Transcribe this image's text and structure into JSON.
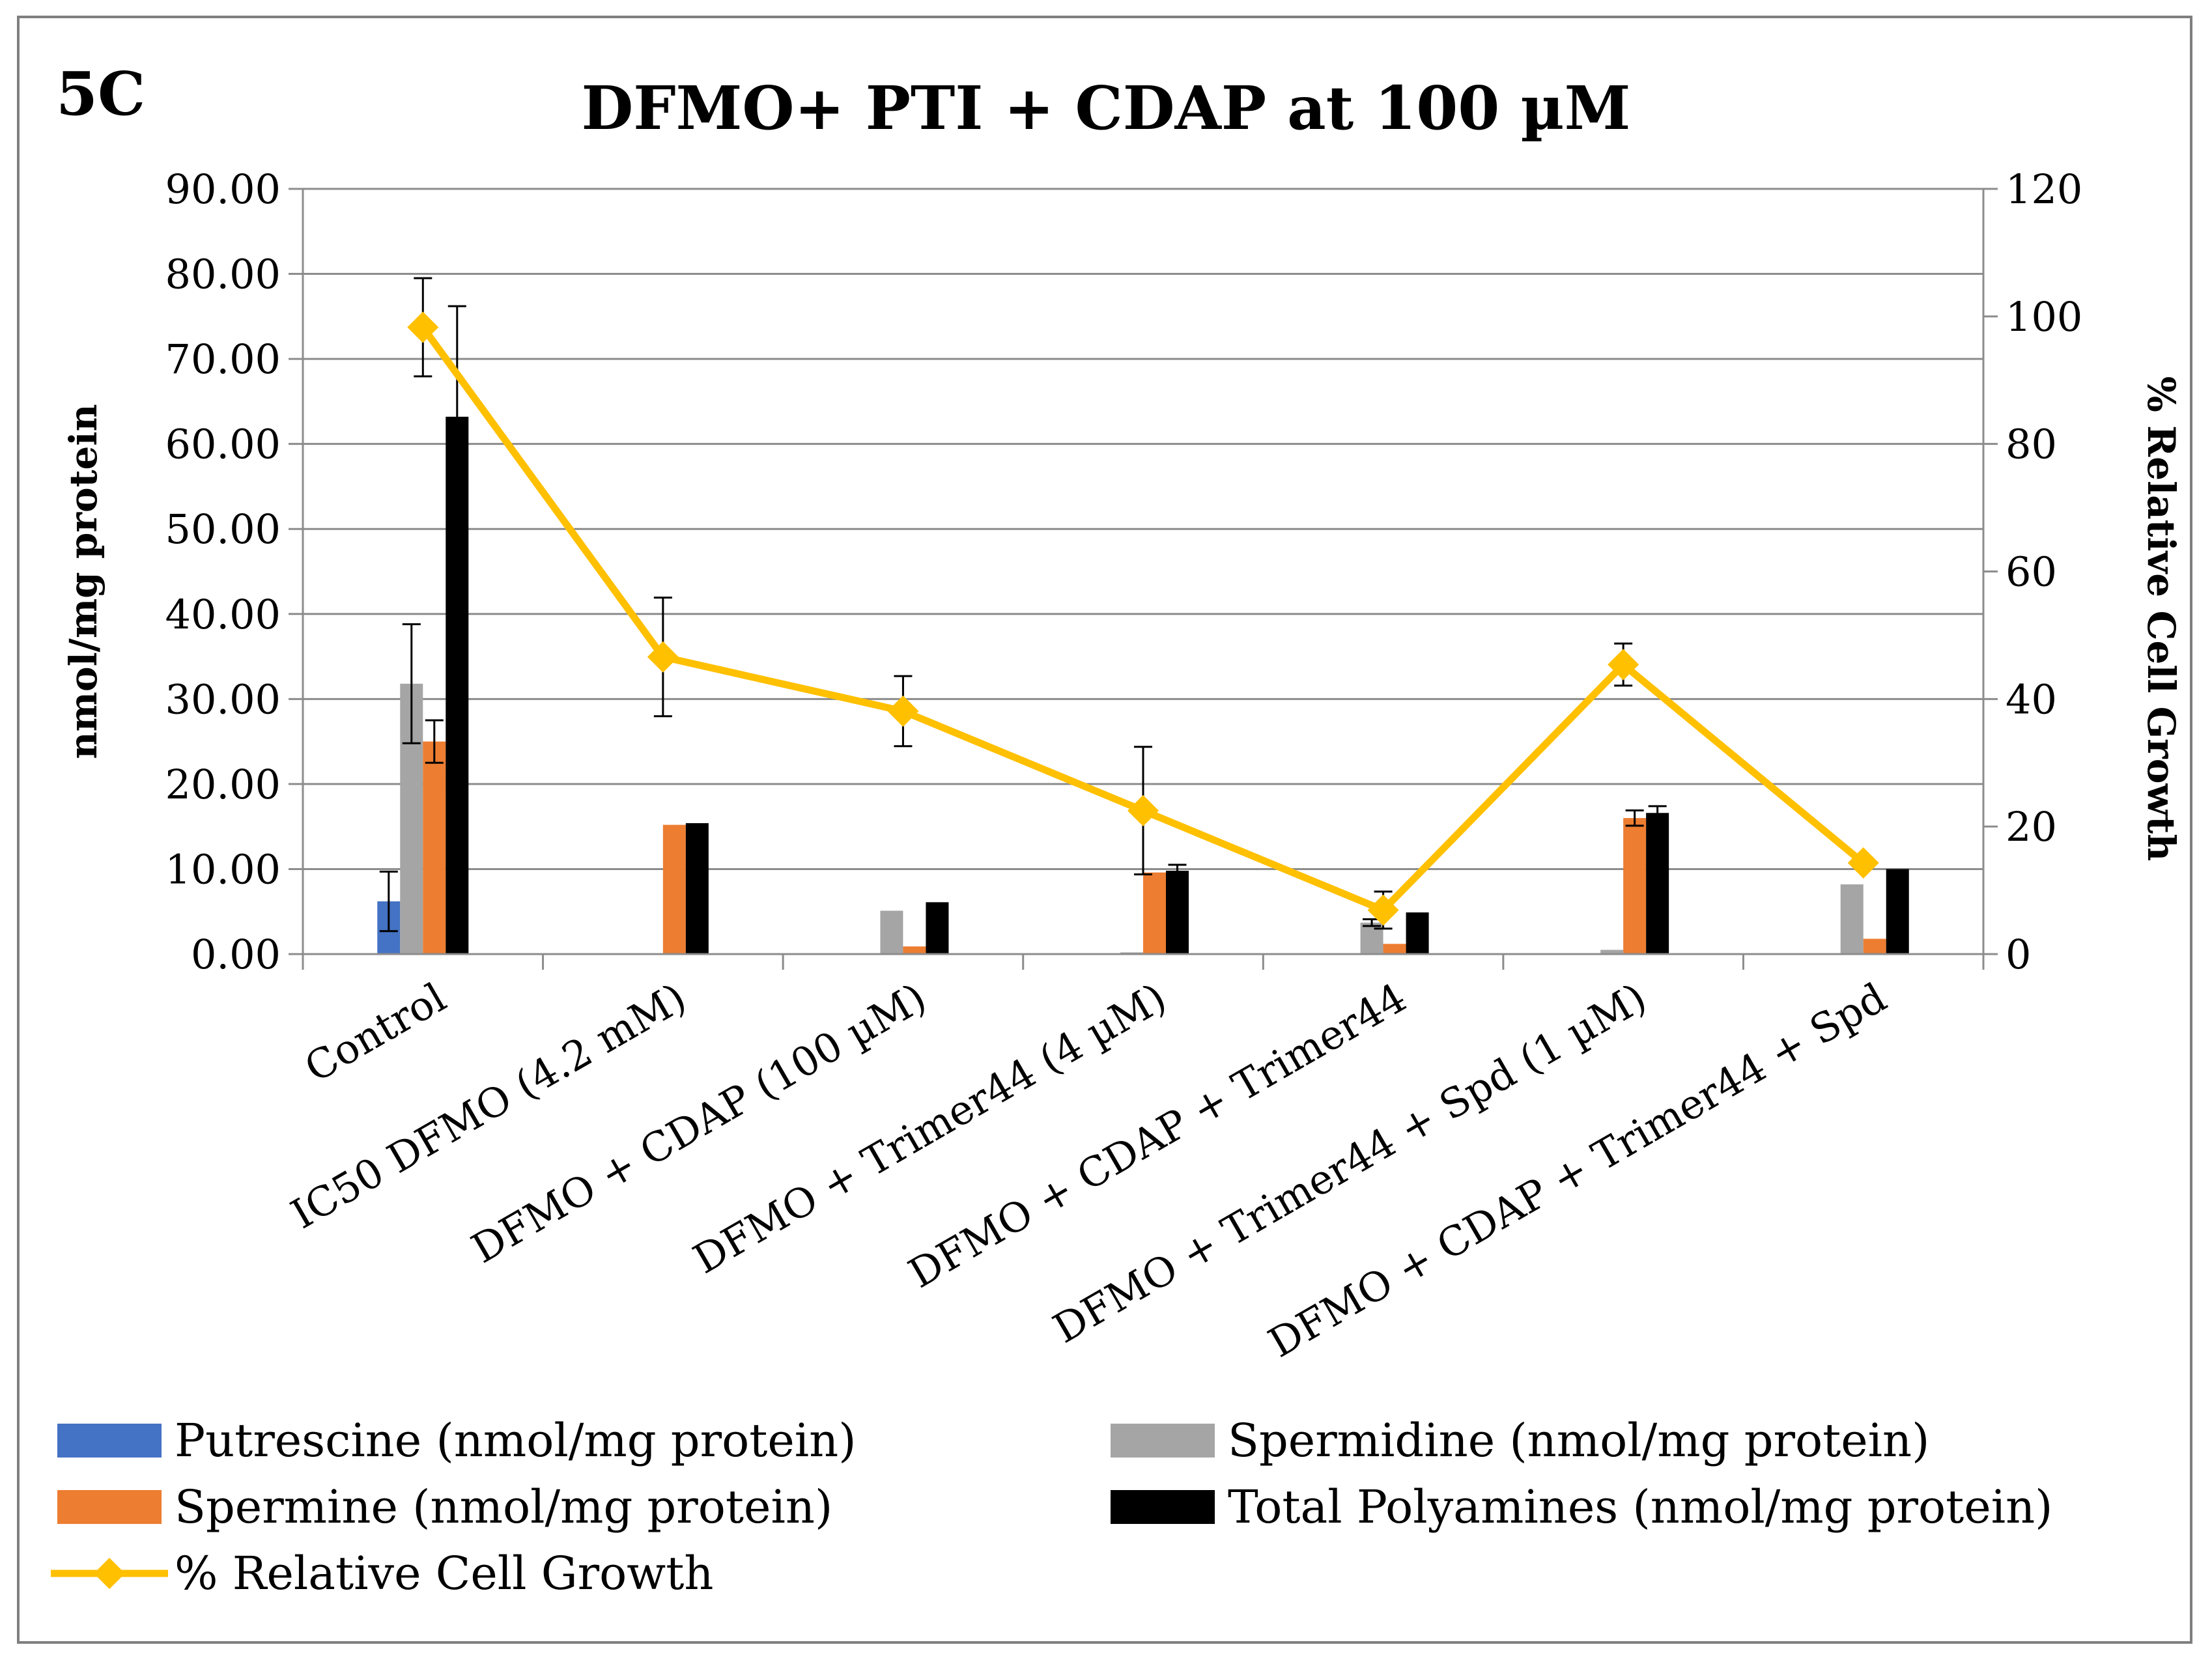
{
  "panel_label": "5C",
  "chart_data": {
    "type": "bar",
    "title": "DFMO+ PTI + CDAP at 100 µM",
    "ylabel": "nmol/mg protein",
    "y2label": "% Relative Cell Growth",
    "ylim": [
      0,
      90
    ],
    "y2lim": [
      0,
      120
    ],
    "yticks": [
      "0.00",
      "10.00",
      "20.00",
      "30.00",
      "40.00",
      "50.00",
      "60.00",
      "70.00",
      "80.00",
      "90.00"
    ],
    "y2ticks": [
      "0",
      "20",
      "40",
      "60",
      "80",
      "100",
      "120"
    ],
    "grid": true,
    "legend_position": "bottom",
    "categories": [
      "Control",
      "IC50 DFMO (4.2 mM)",
      "DFMO + CDAP (100 µM)",
      "DFMO + Trimer44 (4 µM)",
      "DFMO + CDAP + Trimer44",
      "DFMO +  Trimer44 + Spd (1 µM)",
      "DFMO +  CDAP + Trimer44 + Spd"
    ],
    "series": [
      {
        "name": "Putrescine (nmol/mg protein)",
        "color": "#4472c4",
        "axis": "left",
        "values": [
          6.2,
          0,
          0,
          0,
          0,
          0,
          0
        ],
        "errors": [
          3.5,
          0,
          0,
          0,
          0,
          0,
          0
        ]
      },
      {
        "name": "Spermidine (nmol/mg protein)",
        "color": "#a5a5a5",
        "axis": "left",
        "values": [
          31.8,
          0.1,
          5.1,
          0.2,
          3.7,
          0.5,
          8.2
        ],
        "errors": [
          7.0,
          0,
          0,
          0,
          0.4,
          0,
          0
        ]
      },
      {
        "name": "Spermine (nmol/mg protein)",
        "color": "#ed7d31",
        "axis": "left",
        "values": [
          25.0,
          15.2,
          0.9,
          9.6,
          1.2,
          16.0,
          1.8
        ],
        "errors": [
          2.5,
          0,
          0,
          0,
          0,
          0.9,
          0
        ]
      },
      {
        "name": "Total Polyamines (nmol/mg protein)",
        "color": "#000000",
        "axis": "left",
        "values": [
          63.2,
          15.4,
          6.1,
          9.8,
          4.9,
          16.6,
          10.0
        ],
        "errors": [
          13.0,
          0,
          0,
          0.7,
          0,
          0.8,
          0
        ]
      },
      {
        "name": "% Relative Cell Growth",
        "type": "line",
        "color": "#ffc000",
        "axis": "right",
        "values": [
          98.3,
          46.6,
          38.1,
          22.5,
          6.9,
          45.4,
          14.3
        ],
        "errors": [
          7.7,
          9.3,
          5.5,
          10.0,
          2.9,
          3.3,
          0
        ]
      }
    ]
  }
}
